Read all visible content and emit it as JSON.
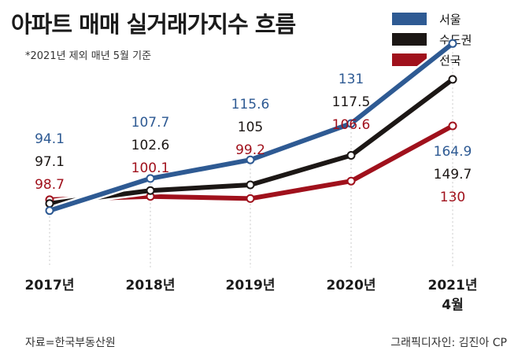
{
  "title": "아파트 매매 실거래가지수 흐름",
  "subtitle": "*2021년 제외 매년 5월 기준",
  "source": "자료=한국부동산원",
  "credit": "그래픽디자인: 김진아 CP",
  "chart_data": {
    "type": "line",
    "title": "아파트 매매 실거래가지수 흐름",
    "subtitle": "*2021년 제외 매년 5월 기준",
    "categories": [
      "2017년",
      "2018년",
      "2019년",
      "2020년",
      "2021년\n4월"
    ],
    "series": [
      {
        "name": "서울",
        "color": "#2e5a93",
        "values": [
          94.1,
          107.7,
          115.6,
          131,
          164.9
        ]
      },
      {
        "name": "수도권",
        "color": "#1c1715",
        "values": [
          97.1,
          102.6,
          105,
          117.5,
          149.7
        ]
      },
      {
        "name": "전국",
        "color": "#a0111c",
        "values": [
          98.7,
          100.1,
          99.2,
          106.6,
          130
        ]
      }
    ],
    "legend_position": "top-right",
    "grid": false,
    "ylim": [
      75,
      175
    ],
    "xlabel": "",
    "ylabel": ""
  }
}
